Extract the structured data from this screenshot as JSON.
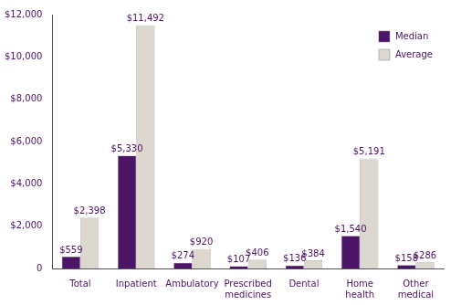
{
  "chart_data": {
    "type": "bar",
    "categories": [
      "Total",
      "Inpatient",
      "Ambulatory",
      "Prescribed medicines",
      "Dental",
      "Home health",
      "Other medical"
    ],
    "series": [
      {
        "name": "Median",
        "color": "#4b1466",
        "values": [
          559,
          5330,
          274,
          107,
          136,
          1540,
          158
        ],
        "value_labels": [
          "$559",
          "$5,330",
          "$274",
          "$107",
          "$136",
          "$1,540",
          "$158"
        ]
      },
      {
        "name": "Average",
        "color": "#dcd7cf",
        "values": [
          2398,
          11492,
          920,
          406,
          384,
          5191,
          286
        ],
        "value_labels": [
          "$2,398",
          "$11,492",
          "$920",
          "$406",
          "$384",
          "$5,191",
          "$286"
        ]
      }
    ],
    "ylim": [
      0,
      12000
    ],
    "yticks": [
      {
        "value": 0,
        "label": "0"
      },
      {
        "value": 2000,
        "label": "$2,000"
      },
      {
        "value": 4000,
        "label": "$4,000"
      },
      {
        "value": 6000,
        "label": "$6,000"
      },
      {
        "value": 8000,
        "label": "$8,000"
      },
      {
        "value": 10000,
        "label": "$10,000"
      },
      {
        "value": 12000,
        "label": "$12,000"
      }
    ],
    "grid": false,
    "legend": "upper right",
    "data_labels": true
  }
}
